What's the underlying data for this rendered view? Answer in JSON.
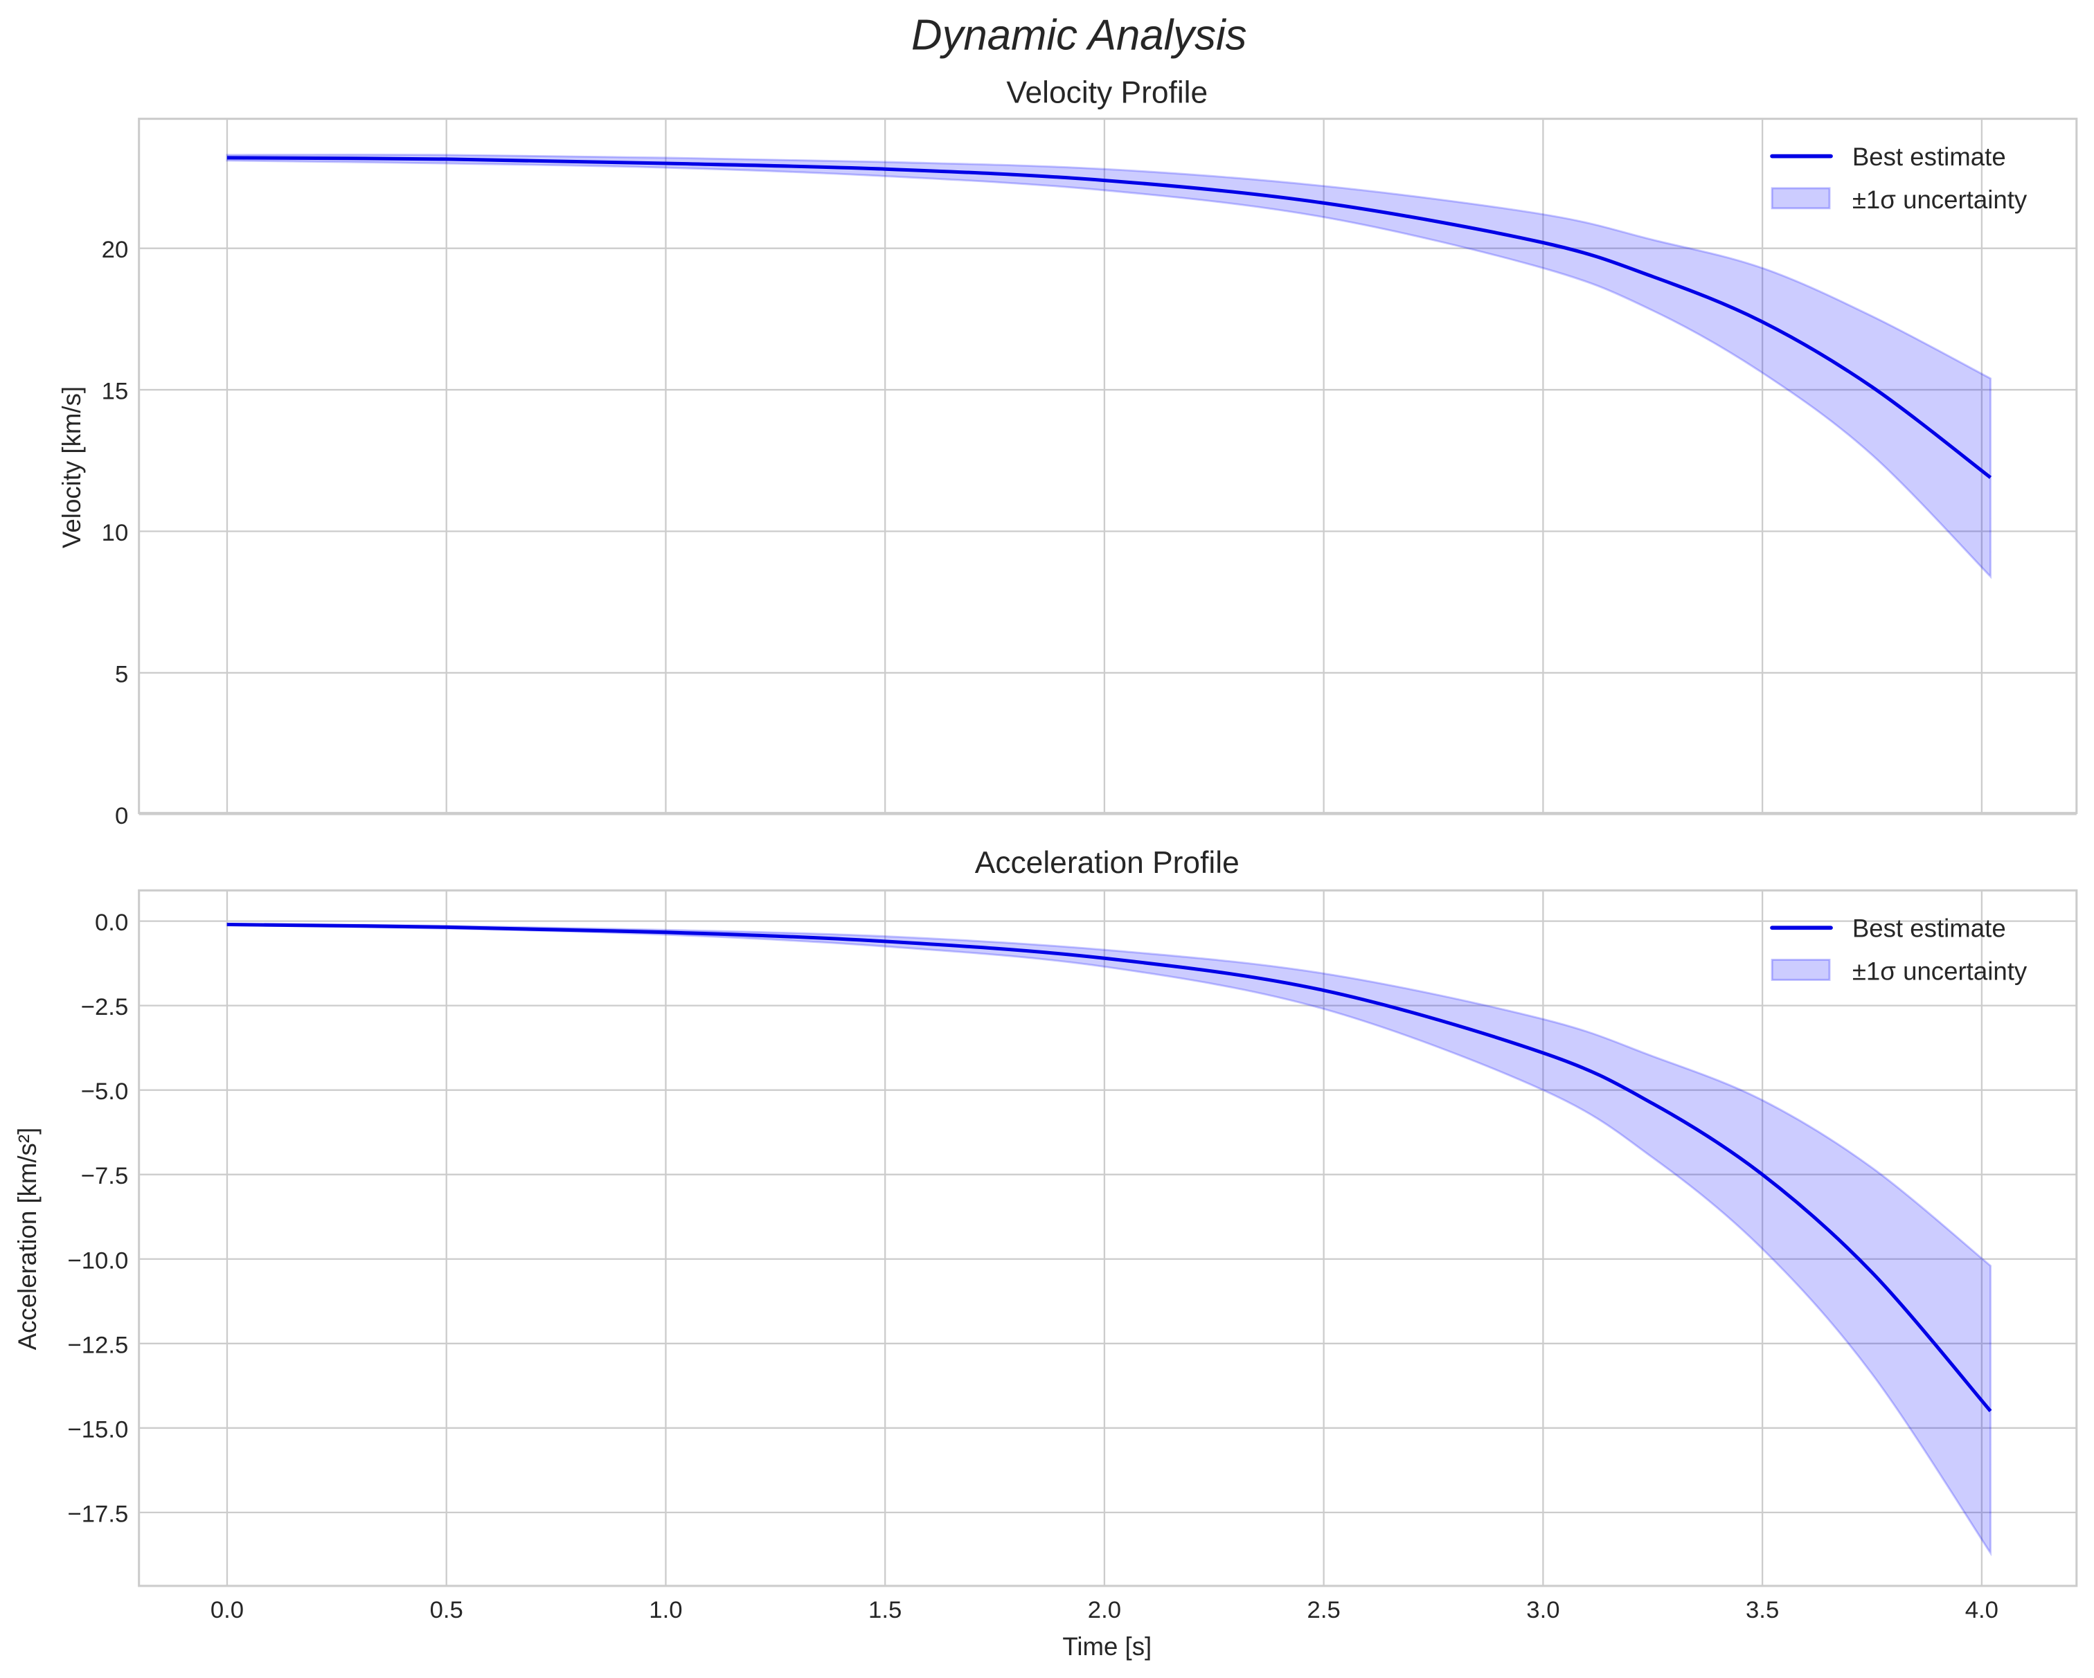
{
  "figure": {
    "suptitle": "Dynamic Analysis",
    "colors": {
      "line": "#0000e6",
      "band_fill": "#0000ff",
      "band_alpha": 0.2,
      "grid": "#cccccc",
      "text": "#262626"
    }
  },
  "velocity": {
    "title": "Velocity Profile",
    "ylabel": "Velocity [km/s]",
    "yticks": [
      "0",
      "5",
      "10",
      "15",
      "20"
    ],
    "legend": {
      "line_label": "Best estimate",
      "band_label": "±1σ uncertainty"
    }
  },
  "acceleration": {
    "title": "Acceleration Profile",
    "ylabel": "Acceleration [km/s²]",
    "xlabel": "Time [s]",
    "yticks": [
      "0.0",
      "−2.5",
      "−5.0",
      "−7.5",
      "−10.0",
      "−12.5",
      "−15.0",
      "−17.5"
    ],
    "xticks": [
      "0.0",
      "0.5",
      "1.0",
      "1.5",
      "2.0",
      "2.5",
      "3.0",
      "3.5",
      "4.0"
    ],
    "legend": {
      "line_label": "Best estimate",
      "band_label": "±1σ uncertainty"
    }
  },
  "chart_data": [
    {
      "type": "line",
      "title": "Velocity Profile",
      "xlabel": "",
      "ylabel": "Velocity [km/s]",
      "xlim": [
        -0.2,
        4.2
      ],
      "ylim": [
        0,
        24.5
      ],
      "grid": true,
      "legend_position": "upper right",
      "x": [
        0.0,
        0.5,
        1.0,
        1.5,
        2.0,
        2.5,
        3.0,
        3.25,
        3.5,
        3.75,
        4.02
      ],
      "series": [
        {
          "name": "Best estimate",
          "values": [
            23.2,
            23.15,
            23.0,
            22.8,
            22.4,
            21.6,
            20.2,
            19.0,
            17.4,
            15.1,
            11.9
          ]
        },
        {
          "name": "±1σ uncertainty (upper)",
          "values": [
            23.3,
            23.3,
            23.2,
            23.05,
            22.8,
            22.2,
            21.2,
            20.3,
            19.3,
            17.6,
            15.4
          ]
        },
        {
          "name": "±1σ uncertainty (lower)",
          "values": [
            23.1,
            23.0,
            22.85,
            22.55,
            22.05,
            21.1,
            19.3,
            17.8,
            15.6,
            12.7,
            8.4
          ]
        }
      ]
    },
    {
      "type": "line",
      "title": "Acceleration Profile",
      "xlabel": "Time [s]",
      "ylabel": "Acceleration [km/s²]",
      "xlim": [
        -0.2,
        4.2
      ],
      "ylim": [
        -19.7,
        0.8
      ],
      "grid": true,
      "legend_position": "upper right",
      "x": [
        0.0,
        0.5,
        1.0,
        1.5,
        2.0,
        2.5,
        3.0,
        3.25,
        3.5,
        3.75,
        4.02
      ],
      "series": [
        {
          "name": "Best estimate",
          "values": [
            -0.1,
            -0.18,
            -0.33,
            -0.6,
            -1.1,
            -2.05,
            -3.9,
            -5.4,
            -7.5,
            -10.4,
            -14.5
          ]
        },
        {
          "name": "±1σ uncertainty (upper)",
          "values": [
            -0.08,
            -0.14,
            -0.26,
            -0.45,
            -0.85,
            -1.55,
            -2.9,
            -4.0,
            -5.3,
            -7.3,
            -10.2
          ]
        },
        {
          "name": "±1σ uncertainty (lower)",
          "values": [
            -0.12,
            -0.22,
            -0.4,
            -0.75,
            -1.35,
            -2.6,
            -5.0,
            -7.0,
            -9.7,
            -13.4,
            -18.7
          ]
        }
      ]
    }
  ]
}
